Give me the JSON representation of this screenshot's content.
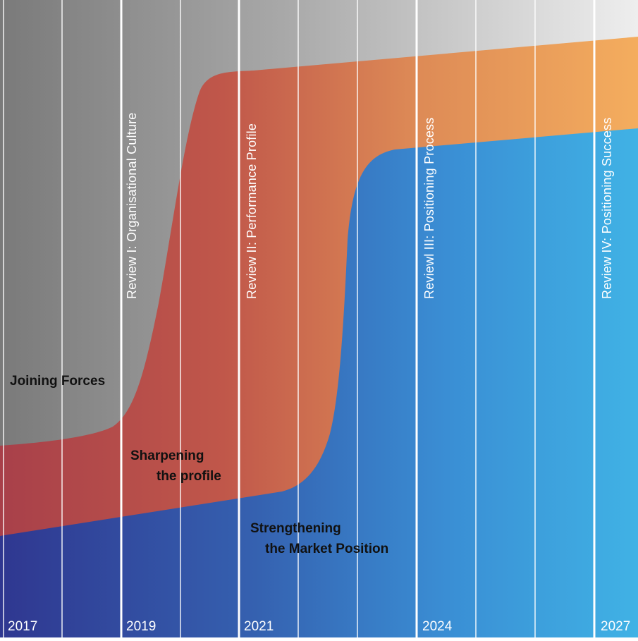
{
  "years": [
    "2017",
    "2019",
    "2021",
    "2024",
    "2027"
  ],
  "reviews": [
    "Review I: Organisational Culture",
    "Review II: Performance Profile",
    "Reviewl III: Positioning Process",
    "Review IV: Positioning Success"
  ],
  "phases": {
    "joining": "Joining Forces",
    "sharpening_1": "Sharpening",
    "sharpening_2": "the profile",
    "strengthening_1": "Strengthening",
    "strengthening_2": "the Market Position"
  },
  "colors": {
    "grey_dark": "#777777",
    "grey_light": "#e6e6e6",
    "red": "#b5433f",
    "orange": "#f2aa5c",
    "blue_dark": "#2e3a8e",
    "blue_light": "#3fb0e3"
  }
}
